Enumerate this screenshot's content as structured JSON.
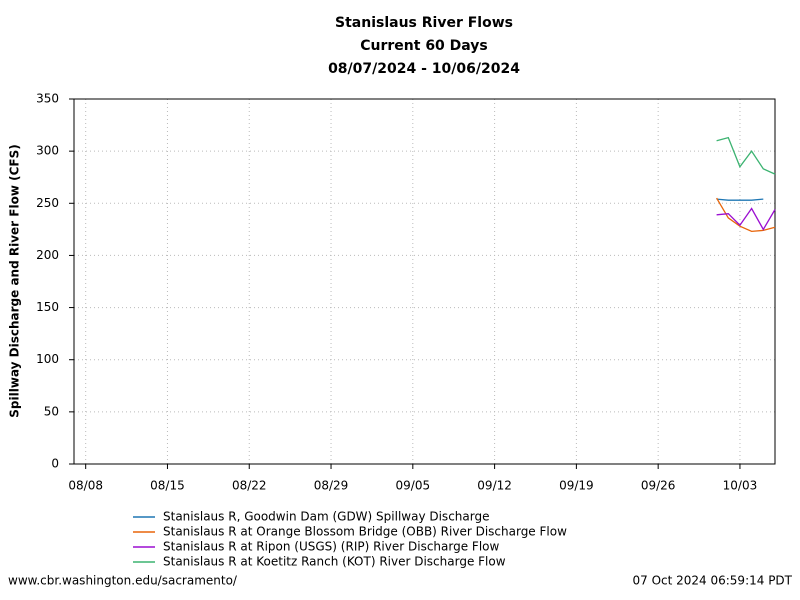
{
  "chart_data": {
    "type": "line",
    "title": "Stanislaus River Flows",
    "subtitle": "Current 60 Days",
    "period": "08/07/2024 - 10/06/2024",
    "y_label": "Spillway Discharge and River Flow (CFS)",
    "x": [
      "10/01",
      "10/02",
      "10/03",
      "10/04",
      "10/05",
      "10/06"
    ],
    "xlim": [
      "08/07",
      "10/06"
    ],
    "xticks": [
      "08/08",
      "08/15",
      "08/22",
      "08/29",
      "09/05",
      "09/12",
      "09/19",
      "09/26",
      "10/03"
    ],
    "ylim": [
      0,
      350
    ],
    "yticks": [
      0,
      50,
      100,
      150,
      200,
      250,
      300,
      350
    ],
    "grid": true,
    "series": [
      {
        "name": "Stanislaus R, Goodwin Dam (GDW) Spillway Discharge",
        "color": "#1f77b4",
        "values": [
          254,
          253,
          253,
          253,
          254,
          null
        ]
      },
      {
        "name": "Stanislaus R at Orange Blossom Bridge (OBB) River Discharge Flow",
        "color": "#e8650a",
        "values": [
          255,
          236,
          228,
          223,
          224,
          227
        ]
      },
      {
        "name": "Stanislaus R at Ripon (USGS) (RIP) River Discharge Flow",
        "color": "#9b0fd1",
        "values": [
          239,
          240,
          229,
          245,
          225,
          244
        ]
      },
      {
        "name": "Stanislaus R at Koetitz Ranch (KOT) River Discharge Flow",
        "color": "#3cb371",
        "values": [
          310,
          313,
          285,
          300,
          283,
          278
        ]
      }
    ]
  },
  "footer": {
    "source": "www.cbr.washington.edu/sacramento/",
    "timestamp": "07 Oct 2024 06:59:14 PDT"
  }
}
